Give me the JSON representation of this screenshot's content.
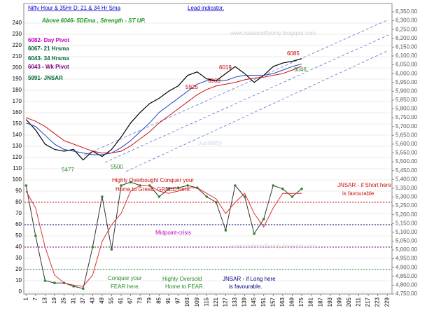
{
  "chart_data": {
    "type": "line",
    "title": "Nifty Hour & 35Hr D: 21 & 34 Hr Sma",
    "title_note": "Lead indicator.",
    "subtitle": "Above 6046-  5DEma ,  Strength - ST  UP.",
    "watermarks": [
      "www.tradeinniftyonly.blogspot.com",
      "JustNifty",
      "www.tradeinniftyonly.blogspot.com"
    ],
    "x": [
      1,
      7,
      13,
      19,
      25,
      31,
      37,
      43,
      49,
      55,
      61,
      67,
      73,
      79,
      85,
      91,
      97,
      103,
      109,
      115,
      121,
      127,
      133,
      139,
      145,
      151,
      157,
      163,
      169,
      175
    ],
    "series": [
      {
        "color": "#000000",
        "axis": "y2",
        "values": [
          5740,
          5680,
          5600,
          5570,
          5560,
          5570,
          5510,
          5560,
          5530,
          5570,
          5640,
          5720,
          5780,
          5830,
          5860,
          5900,
          5930,
          5990,
          6010,
          5970,
          5960,
          6000,
          6040,
          6000,
          5950,
          5990,
          6040,
          6060,
          6070,
          6085
        ]
      },
      {
        "color": "#1f3fbf",
        "axis": "y2",
        "values": [
          5720,
          5700,
          5650,
          5600,
          5570,
          5560,
          5550,
          5540,
          5540,
          5550,
          5580,
          5620,
          5670,
          5720,
          5780,
          5820,
          5860,
          5900,
          5940,
          5960,
          5960,
          5960,
          5980,
          5990,
          5990,
          5990,
          6000,
          6020,
          6040,
          6055
        ]
      },
      {
        "color": "#d01010",
        "axis": "y2",
        "values": [
          5750,
          5730,
          5700,
          5660,
          5620,
          5600,
          5580,
          5560,
          5550,
          5550,
          5560,
          5590,
          5630,
          5670,
          5720,
          5760,
          5800,
          5840,
          5880,
          5910,
          5930,
          5940,
          5950,
          5965,
          5975,
          5980,
          5990,
          6000,
          6020,
          6043
        ]
      },
      {
        "color": "#333333",
        "axis": "y",
        "marker": "#2a8a2a",
        "values": [
          95,
          50,
          10,
          8,
          8,
          5,
          3,
          40,
          85,
          38,
          95,
          98,
          95,
          95,
          85,
          92,
          93,
          95,
          93,
          85,
          80,
          55,
          95,
          85,
          52,
          65,
          95,
          92,
          85,
          92
        ]
      },
      {
        "color": "#e03030",
        "axis": "y",
        "values": [
          90,
          75,
          40,
          15,
          8,
          6,
          5,
          15,
          45,
          60,
          70,
          90,
          95,
          95,
          90,
          88,
          90,
          93,
          93,
          88,
          83,
          70,
          80,
          88,
          70,
          58,
          75,
          88,
          88,
          88
        ]
      }
    ],
    "reference_lines": [
      {
        "value": 80,
        "color": "#d01010"
      },
      {
        "value": 60,
        "color": "#000080"
      },
      {
        "value": 40,
        "color": "#800080"
      },
      {
        "value": 20,
        "color": "#2a8a2a"
      }
    ],
    "annotations": [
      {
        "text": "6082- Day Pivot",
        "color": "#c000c0"
      },
      {
        "text": "6067- 21 Hrsma",
        "color": "#006633"
      },
      {
        "text": "6043- 34 Hrsma",
        "color": "#006633"
      },
      {
        "text": "6043 - Wk Pivot",
        "color": "#800080"
      },
      {
        "text": "5991- JNSAR",
        "color": "#006633"
      },
      {
        "text": "6085",
        "color": "#c00000"
      },
      {
        "text": "6019",
        "color": "#c00000"
      },
      {
        "text": "5963",
        "color": "#c00000"
      },
      {
        "text": "5925",
        "color": "#c00000"
      },
      {
        "text": "5477",
        "color": "#2a8a2a"
      },
      {
        "text": "5500",
        "color": "#2a8a2a"
      },
      {
        "text": "6046",
        "color": "#2a8a2a"
      },
      {
        "text": "Highly Overbought Conquer your",
        "color": "#d01010"
      },
      {
        "text": "Home to Greed.  GREED here.",
        "color": "#d01010"
      },
      {
        "text": "JNSAR - if Short here",
        "color": "#d01010"
      },
      {
        "text": "is favourable.",
        "color": "#d01010"
      },
      {
        "text": "Midpoint-crisis",
        "color": "#c000c0"
      },
      {
        "text": "Conquer your",
        "color": "#2a8a2a"
      },
      {
        "text": "FEAR here.",
        "color": "#2a8a2a"
      },
      {
        "text": "Highly Oversold",
        "color": "#2a8a2a"
      },
      {
        "text": "Home to FEAR.",
        "color": "#2a8a2a"
      },
      {
        "text": "JNSAR - if Long here",
        "color": "#000080"
      },
      {
        "text": "is favourable.",
        "color": "#000080"
      }
    ],
    "xlim": [
      0,
      232
    ],
    "xticks": [
      1,
      7,
      13,
      19,
      25,
      31,
      37,
      43,
      49,
      55,
      61,
      67,
      73,
      79,
      85,
      91,
      97,
      103,
      109,
      115,
      121,
      127,
      133,
      139,
      145,
      151,
      157,
      163,
      169,
      175,
      181,
      187,
      193,
      199,
      205,
      211,
      217,
      223,
      229
    ],
    "ylim": [
      0,
      240
    ],
    "yticks": [
      0,
      10,
      20,
      30,
      40,
      50,
      60,
      70,
      80,
      90,
      100,
      110,
      120,
      130,
      140,
      150,
      160,
      170,
      180,
      190,
      200,
      210,
      220,
      230,
      240
    ],
    "y2lim": [
      4750,
      6350
    ],
    "y2ticks": [
      {
        "value": 4750,
        "label": "4,750.00"
      },
      {
        "value": 4800,
        "label": "4,800.00"
      },
      {
        "value": 4850,
        "label": "4,850.00"
      },
      {
        "value": 4900,
        "label": "4,900.00"
      },
      {
        "value": 4950,
        "label": "4,950.00"
      },
      {
        "value": 5000,
        "label": "5,000.00"
      },
      {
        "value": 5050,
        "label": "5,050.00"
      },
      {
        "value": 5100,
        "label": "5,100.00"
      },
      {
        "value": 5150,
        "label": "5,150.00"
      },
      {
        "value": 5200,
        "label": "5,200.00"
      },
      {
        "value": 5250,
        "label": "5,250.00"
      },
      {
        "value": 5300,
        "label": "5,300.00"
      },
      {
        "value": 5350,
        "label": "5,350.00"
      },
      {
        "value": 5400,
        "label": "5,400.00"
      },
      {
        "value": 5450,
        "label": "5,450.00"
      },
      {
        "value": 5500,
        "label": "5,500.00"
      },
      {
        "value": 5550,
        "label": "5,550.00"
      },
      {
        "value": 5600,
        "label": "5,600.00"
      },
      {
        "value": 5650,
        "label": "5,650.00"
      },
      {
        "value": 5700,
        "label": "5,700.00"
      },
      {
        "value": 5750,
        "label": "5,750.00"
      },
      {
        "value": 5800,
        "label": "5,800.00"
      },
      {
        "value": 5850,
        "label": "5,850.00"
      },
      {
        "value": 5900,
        "label": "5,900.00"
      },
      {
        "value": 5950,
        "label": "5,950.00"
      },
      {
        "value": 6000,
        "label": "6,000.00"
      },
      {
        "value": 6050,
        "label": "6,050.00"
      },
      {
        "value": 6100,
        "label": "6,100.00"
      },
      {
        "value": 6150,
        "label": "6,150.00"
      },
      {
        "value": 6200,
        "label": "6,200.00"
      },
      {
        "value": 6250,
        "label": "6,250.00"
      },
      {
        "value": 6300,
        "label": "6,300.00"
      },
      {
        "value": 6350,
        "label": "6,350.00"
      }
    ],
    "grid": true
  }
}
